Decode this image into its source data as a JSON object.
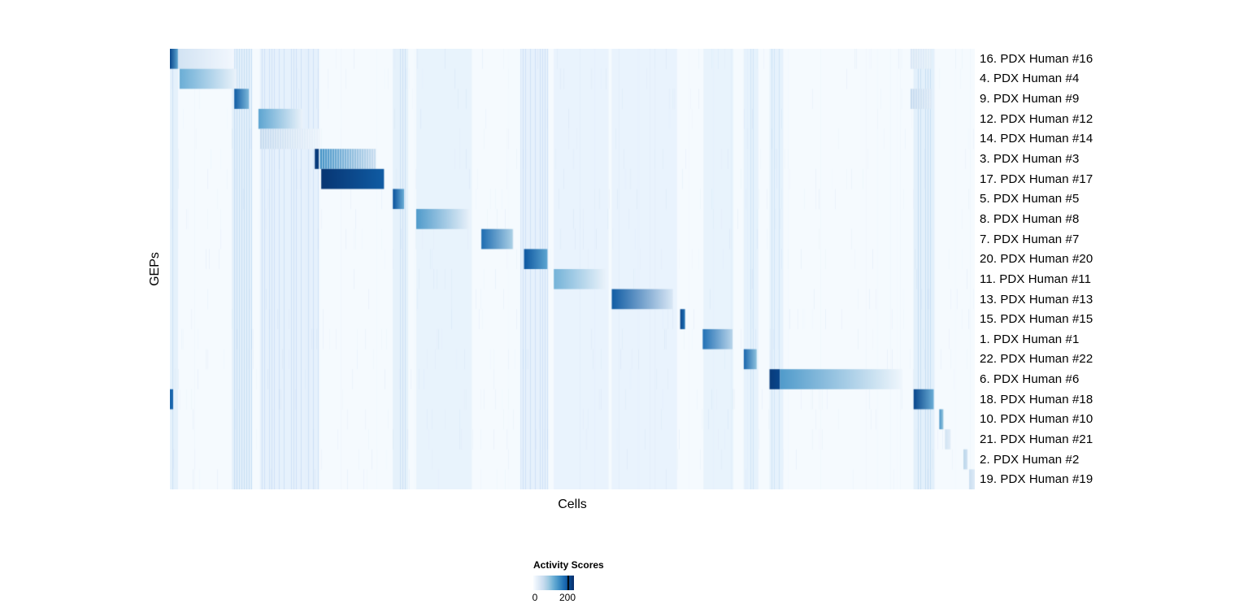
{
  "chart_data": {
    "type": "heatmap",
    "title": "",
    "xlabel": "Cells",
    "ylabel": "GEPs",
    "legend_position": "bottom-center",
    "background_color": "#f7fbff",
    "colormap": "Blues",
    "colormap_stops": [
      "#f7fbff",
      "#deebf7",
      "#c6dbef",
      "#9ecae1",
      "#6baed6",
      "#4292c6",
      "#2171b5",
      "#08519c",
      "#08306b"
    ],
    "value_domain": [
      0,
      240
    ],
    "legend": {
      "title": "Activity Scores",
      "ticks": [
        {
          "label": "0",
          "value": 0
        },
        {
          "label": "200",
          "value": 200
        }
      ]
    },
    "rows": [
      "16. PDX Human #16",
      "4. PDX Human #4",
      "9. PDX Human #9",
      "12. PDX Human #12",
      "14. PDX Human #14",
      "3. PDX Human #3",
      "17. PDX Human #17",
      "5. PDX Human #5",
      "8. PDX Human #8",
      "7. PDX Human #7",
      "20. PDX Human #20",
      "11. PDX Human #11",
      "13. PDX Human #13",
      "15. PDX Human #15",
      "1. PDX Human #1",
      "22. PDX Human #22",
      "6. PDX Human #6",
      "18. PDX Human #18",
      "10. PDX Human #10",
      "21. PDX Human #21",
      "2. PDX Human #2",
      "19. PDX Human #19"
    ],
    "column_bands": [
      {
        "x0": 0.0,
        "x1": 0.01,
        "value": 10,
        "striped": true
      },
      {
        "x0": 0.077,
        "x1": 0.102,
        "value": 12,
        "striped": true
      },
      {
        "x0": 0.112,
        "x1": 0.185,
        "value": 9,
        "striped": true
      },
      {
        "x0": 0.277,
        "x1": 0.296,
        "value": 10,
        "striped": true
      },
      {
        "x0": 0.306,
        "x1": 0.375,
        "value": 6,
        "striped": false
      },
      {
        "x0": 0.436,
        "x1": 0.47,
        "value": 9,
        "striped": true
      },
      {
        "x0": 0.477,
        "x1": 0.545,
        "value": 5,
        "striped": false
      },
      {
        "x0": 0.549,
        "x1": 0.63,
        "value": 5,
        "striped": false
      },
      {
        "x0": 0.663,
        "x1": 0.7,
        "value": 6,
        "striped": false
      },
      {
        "x0": 0.713,
        "x1": 0.731,
        "value": 8,
        "striped": true
      },
      {
        "x0": 0.745,
        "x1": 0.762,
        "value": 8,
        "striped": true
      },
      {
        "x0": 0.924,
        "x1": 0.95,
        "value": 12,
        "striped": true
      }
    ],
    "segments": [
      {
        "row": 0,
        "x0": 0.0,
        "x1": 0.01,
        "v0": 220,
        "v1": 130
      },
      {
        "row": 0,
        "x0": 0.01,
        "x1": 0.08,
        "v0": 45,
        "v1": 5
      },
      {
        "row": 0,
        "x0": 0.92,
        "x1": 0.946,
        "v0": 35,
        "v1": 25,
        "striped": true
      },
      {
        "row": 1,
        "x0": 0.012,
        "x1": 0.083,
        "v0": 120,
        "v1": 15
      },
      {
        "row": 2,
        "x0": 0.08,
        "x1": 0.098,
        "v0": 200,
        "v1": 110
      },
      {
        "row": 2,
        "x0": 0.92,
        "x1": 0.946,
        "v0": 60,
        "v1": 35,
        "striped": true
      },
      {
        "row": 3,
        "x0": 0.11,
        "x1": 0.165,
        "v0": 130,
        "v1": 15
      },
      {
        "row": 4,
        "x0": 0.112,
        "x1": 0.186,
        "v0": 60,
        "v1": 15,
        "striped": true
      },
      {
        "row": 5,
        "x0": 0.18,
        "x1": 0.185,
        "v0": 230,
        "v1": 230
      },
      {
        "row": 5,
        "x0": 0.186,
        "x1": 0.256,
        "v0": 150,
        "v1": 55,
        "striped": true
      },
      {
        "row": 6,
        "x0": 0.188,
        "x1": 0.266,
        "v0": 235,
        "v1": 200
      },
      {
        "row": 7,
        "x0": 0.277,
        "x1": 0.291,
        "v0": 210,
        "v1": 120
      },
      {
        "row": 8,
        "x0": 0.306,
        "x1": 0.372,
        "v0": 140,
        "v1": 18
      },
      {
        "row": 9,
        "x0": 0.387,
        "x1": 0.426,
        "v0": 185,
        "v1": 80
      },
      {
        "row": 10,
        "x0": 0.44,
        "x1": 0.469,
        "v0": 205,
        "v1": 130
      },
      {
        "row": 11,
        "x0": 0.477,
        "x1": 0.542,
        "v0": 115,
        "v1": 15
      },
      {
        "row": 12,
        "x0": 0.549,
        "x1": 0.625,
        "v0": 200,
        "v1": 35
      },
      {
        "row": 13,
        "x0": 0.634,
        "x1": 0.64,
        "v0": 220,
        "v1": 180
      },
      {
        "row": 14,
        "x0": 0.662,
        "x1": 0.699,
        "v0": 180,
        "v1": 70
      },
      {
        "row": 15,
        "x0": 0.713,
        "x1": 0.729,
        "v0": 190,
        "v1": 100
      },
      {
        "row": 16,
        "x0": 0.745,
        "x1": 0.758,
        "v0": 230,
        "v1": 220
      },
      {
        "row": 16,
        "x0": 0.758,
        "x1": 0.91,
        "v0": 140,
        "v1": 8
      },
      {
        "row": 17,
        "x0": 0.0,
        "x1": 0.004,
        "v0": 190,
        "v1": 190
      },
      {
        "row": 17,
        "x0": 0.924,
        "x1": 0.949,
        "v0": 220,
        "v1": 120
      },
      {
        "row": 18,
        "x0": 0.956,
        "x1": 0.961,
        "v0": 150,
        "v1": 90
      },
      {
        "row": 19,
        "x0": 0.963,
        "x1": 0.97,
        "v0": 45,
        "v1": 25
      },
      {
        "row": 20,
        "x0": 0.986,
        "x1": 0.991,
        "v0": 70,
        "v1": 45
      },
      {
        "row": 21,
        "x0": 0.993,
        "x1": 1.0,
        "v0": 55,
        "v1": 30
      }
    ]
  }
}
